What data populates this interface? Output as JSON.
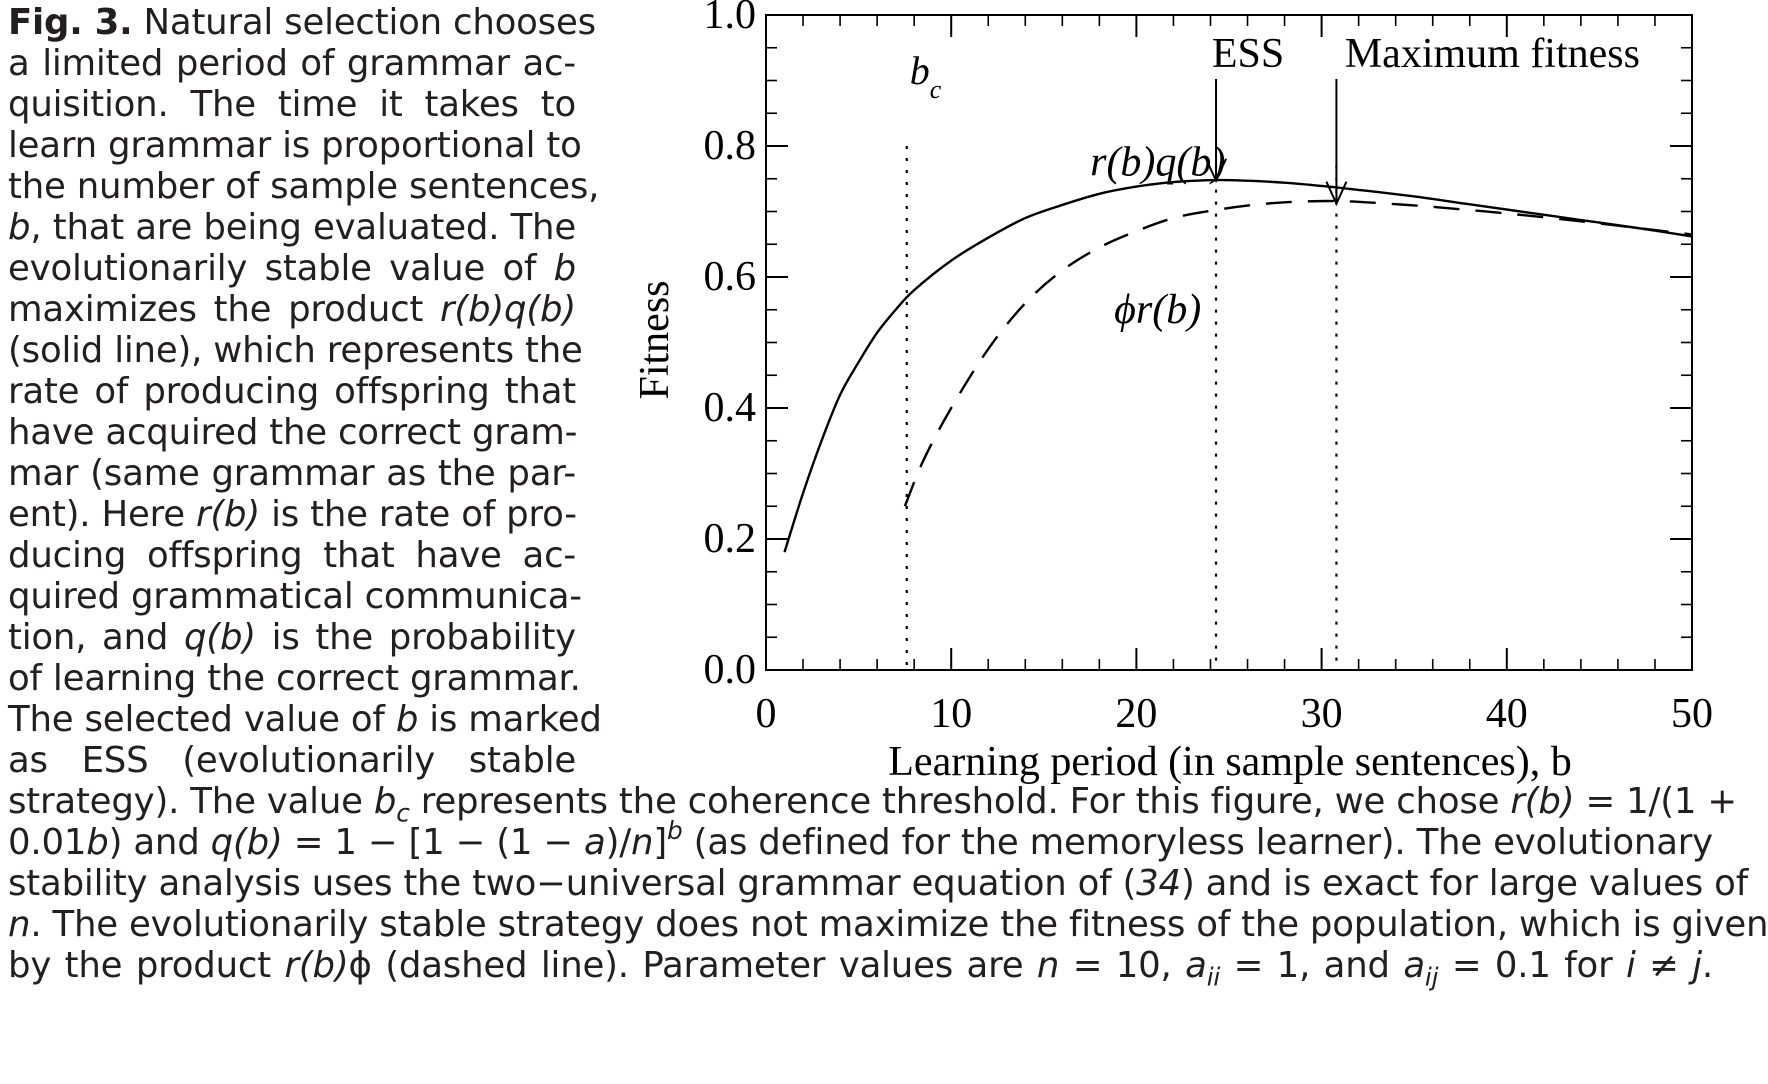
{
  "caption": {
    "label": "Fig. 3.",
    "lines_narrow": [
      " Natural selection chooses",
      "a limited period of grammar ac-",
      "quisition. The time it takes to",
      "learn grammar is proportional to",
      "the number of sample sentences,",
      ", that are being evaluated. The",
      "evolutionarily stable value of ",
      "maximizes the product ",
      "(solid line), which represents the",
      "rate of producing offspring that",
      "have acquired the correct gram-",
      "mar (same grammar as the par-",
      "ent). Here ",
      "ducing offspring that have ac-",
      "quired grammatical communica-",
      "tion, and ",
      "of learning the correct grammar.",
      "The selected value of ",
      "as ESS (evolutionarily stable"
    ],
    "frag": {
      "b": "b",
      "rbqb": "r(b)q(b)",
      "rb": "r(b)",
      "rb_tail": " is the rate of pro-",
      "qb": "q(b)",
      "qb_tail": " is the probability",
      "marked_tail": " is marked",
      "l20a": "strategy). The value ",
      "bc_b": "b",
      "bc_c": "c",
      "l20b": " represents the coherence threshold. For this figure, we chose ",
      "l20c": " = 1/(1 +",
      "l21a": "0.01",
      "l21b": ") and ",
      "l21c": " = 1 − [1 − (1 − ",
      "a": "a",
      "l21d": ")/",
      "n": "n",
      "l21e": "]",
      "l21f": " (as defined for the memoryless learner). The evolutionary",
      "l22a": "stability analysis uses the two−universal grammar equation of (",
      "ref": "34",
      "l22b": ") and is exact for large values of",
      "l23": ". The evolutionarily stable strategy does not maximize the fitness of the population, which is given",
      "l24a": "by the product ",
      "phi": "ϕ",
      "l24b": " (dashed line). Parameter values are ",
      "l24c": " = 10, ",
      "aii_a": "a",
      "aii_sub": "ii",
      "l24d": " = 1, and ",
      "aij_sub": "ij",
      "l24e": " = 0.1 for ",
      "i": "i",
      "neq": " ≠ ",
      "j": "j",
      "end": "."
    }
  },
  "chart_data": {
    "type": "line",
    "xlabel": "Learning period (in sample sentences),  b",
    "ylabel": "Fitness",
    "xlim": [
      0,
      50
    ],
    "ylim": [
      0.0,
      1.0
    ],
    "xticks": [
      "0",
      "10",
      "20",
      "30",
      "40",
      "50"
    ],
    "yticks": [
      "0.0",
      "0.2",
      "0.4",
      "0.6",
      "0.8",
      "1.0"
    ],
    "series": [
      {
        "name": "r(b)q(b)",
        "style": "solid",
        "x": [
          1,
          2,
          3,
          4,
          5,
          6,
          7,
          8,
          10,
          12,
          14,
          16,
          18,
          20,
          22,
          24.3,
          26,
          28,
          30,
          32,
          35,
          38,
          41,
          44,
          47,
          50
        ],
        "y": [
          0.18,
          0.27,
          0.35,
          0.42,
          0.47,
          0.515,
          0.55,
          0.58,
          0.625,
          0.66,
          0.69,
          0.71,
          0.727,
          0.738,
          0.745,
          0.748,
          0.747,
          0.744,
          0.739,
          0.733,
          0.723,
          0.711,
          0.699,
          0.687,
          0.675,
          0.662
        ]
      },
      {
        "name": "ϕr(b)",
        "style": "dashed",
        "x": [
          7.5,
          8.5,
          10,
          12,
          14,
          16,
          18,
          20,
          22,
          24,
          26,
          28,
          30.6,
          33,
          36,
          40,
          44,
          47,
          50
        ],
        "y": [
          0.25,
          0.32,
          0.4,
          0.49,
          0.56,
          0.61,
          0.645,
          0.67,
          0.69,
          0.701,
          0.709,
          0.714,
          0.716,
          0.713,
          0.707,
          0.697,
          0.685,
          0.675,
          0.665
        ]
      }
    ],
    "vlines": [
      {
        "x": 7.6,
        "label": "b",
        "sub": "c"
      },
      {
        "x": 24.3,
        "label": ""
      },
      {
        "x": 30.8,
        "label": ""
      }
    ],
    "annotations": [
      {
        "text": "ESS",
        "x": 24.3,
        "y": 0.75
      },
      {
        "text": "Maximum fitness",
        "x": 30.8,
        "y": 0.715
      }
    ],
    "series_labels": [
      {
        "text": "r(b)q(b)",
        "x": 17.5,
        "y": 0.755
      },
      {
        "text": "ϕr(b)",
        "x": 18.8,
        "y": 0.53
      }
    ]
  }
}
